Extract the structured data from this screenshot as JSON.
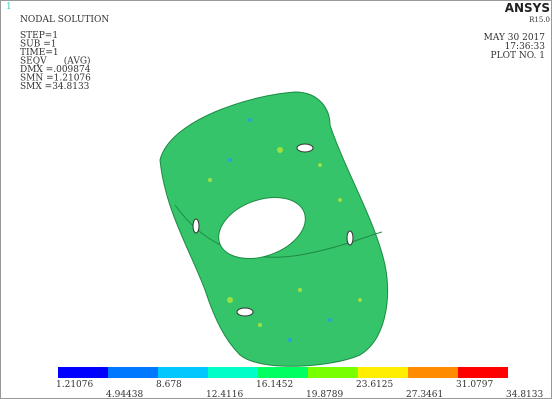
{
  "header": {
    "index": "1",
    "title": "NODAL SOLUTION",
    "info": [
      "STEP=1",
      "SUB =1",
      "TIME=1",
      "SEQV      (AVG)",
      "DMX =.009874",
      "SMN =1.21076",
      "SMX =34.8133"
    ]
  },
  "brand": {
    "name": "ANSYS",
    "version": "R15.0"
  },
  "stamp": {
    "date": "MAY 30 2017",
    "time": "17:36:33",
    "plot": "PLOT NO.   1"
  },
  "legend": {
    "colors": [
      "#0000ff",
      "#0078ff",
      "#00c8ff",
      "#00ffc8",
      "#00ff60",
      "#78ff00",
      "#ffee00",
      "#ff8c00",
      "#ff0000"
    ],
    "labels": [
      "1.21076",
      "4.94438",
      "8.678",
      "12.4116",
      "16.1452",
      "19.8789",
      "23.6125",
      "27.3461",
      "31.0797",
      "34.8133"
    ]
  }
}
